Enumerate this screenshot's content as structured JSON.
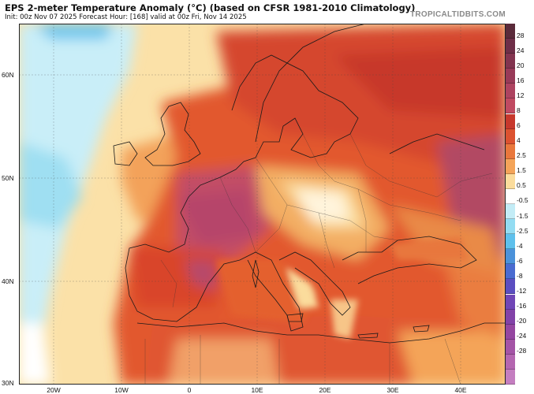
{
  "header": {
    "title": "EPS 2-meter Temperature Anomaly (°C) (based on CFSR 1981-2010 Climatology)",
    "subtitle": "Init: 00z Nov 07 2025   Forecast Hour: [168]   valid at 00z Fri, Nov 14 2025",
    "site": "TROPICALTIDBITS.COM"
  },
  "map": {
    "lat_labels": [
      "60N",
      "50N",
      "40N",
      "30N"
    ],
    "lon_labels": [
      "20W",
      "10W",
      "0",
      "10E",
      "20E",
      "30E",
      "40E"
    ]
  },
  "colorbar": {
    "labels": [
      "28",
      "24",
      "20",
      "16",
      "12",
      "8",
      "6",
      "4",
      "2.5",
      "1.5",
      "0.5",
      "-0.5",
      "-1.5",
      "-2.5",
      "-4",
      "-6",
      "-8",
      "-12",
      "-16",
      "-20",
      "-24",
      "-28"
    ],
    "colors": [
      "#5a2a3a",
      "#6e2e48",
      "#82344f",
      "#983a58",
      "#ad4360",
      "#c04a62",
      "#c7382c",
      "#dc5230",
      "#e9773c",
      "#f4a459",
      "#fbdc9c",
      "#ffffff",
      "#c3ecf6",
      "#93dcf2",
      "#5ec0ec",
      "#4b92da",
      "#4a6bd0",
      "#5b4ec0",
      "#7046b6",
      "#8242a8",
      "#9446a0",
      "#a454a6",
      "#b466b0",
      "#c47ec0"
    ]
  }
}
